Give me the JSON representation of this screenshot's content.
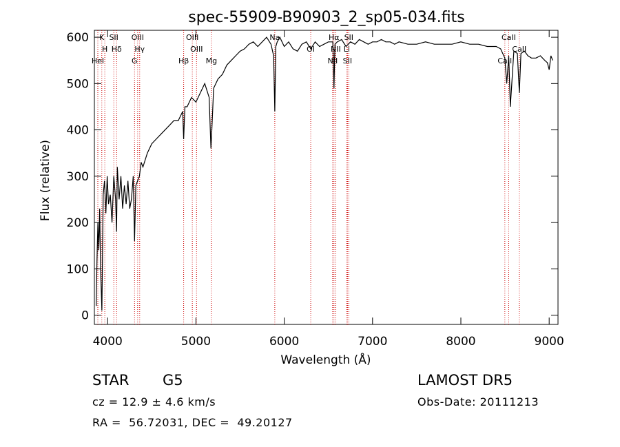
{
  "chart_data": {
    "type": "line",
    "title": "spec-55909-B90903_2_sp05-034.fits",
    "xlabel": "Wavelength (Å)",
    "ylabel": "Flux (relative)",
    "xlim": [
      3850,
      9100
    ],
    "ylim": [
      -20,
      615
    ],
    "x_ticks": [
      4000,
      5000,
      6000,
      7000,
      8000,
      9000
    ],
    "y_ticks": [
      0,
      100,
      200,
      300,
      400,
      500,
      600
    ],
    "series": [
      {
        "x": [
          3870,
          3880,
          3890,
          3900,
          3910,
          3920,
          3935,
          3950,
          3965,
          3980,
          3995,
          4010,
          4030,
          4050,
          4070,
          4090,
          4101,
          4110,
          4130,
          4150,
          4170,
          4190,
          4210,
          4230,
          4250,
          4270,
          4290,
          4305,
          4320,
          4340,
          4360,
          4380,
          4400,
          4450,
          4500,
          4550,
          4600,
          4650,
          4700,
          4750,
          4800,
          4850,
          4861,
          4875,
          4900,
          4950,
          5000,
          5050,
          5100,
          5150,
          5170,
          5180,
          5200,
          5250,
          5300,
          5350,
          5400,
          5450,
          5500,
          5550,
          5600,
          5650,
          5700,
          5750,
          5800,
          5850,
          5880,
          5893,
          5905,
          5920,
          5950,
          6000,
          6050,
          6100,
          6150,
          6200,
          6250,
          6300,
          6350,
          6400,
          6450,
          6500,
          6550,
          6563,
          6575,
          6600,
          6650,
          6700,
          6750,
          6800,
          6850,
          6900,
          6950,
          7000,
          7050,
          7100,
          7150,
          7200,
          7250,
          7300,
          7400,
          7500,
          7600,
          7700,
          7800,
          7900,
          8000,
          8100,
          8200,
          8300,
          8400,
          8450,
          8498,
          8520,
          8542,
          8560,
          8600,
          8640,
          8662,
          8680,
          8720,
          8760,
          8800,
          8850,
          8900,
          8950,
          8980,
          9000,
          9020,
          9040
        ],
        "y": [
          20,
          120,
          200,
          140,
          230,
          100,
          10,
          260,
          290,
          220,
          300,
          240,
          260,
          200,
          300,
          250,
          180,
          320,
          250,
          300,
          230,
          280,
          240,
          290,
          230,
          250,
          300,
          160,
          280,
          290,
          300,
          330,
          320,
          350,
          370,
          380,
          390,
          400,
          410,
          420,
          420,
          440,
          380,
          450,
          450,
          470,
          460,
          480,
          500,
          470,
          360,
          400,
          490,
          510,
          520,
          540,
          550,
          560,
          570,
          575,
          585,
          590,
          580,
          590,
          600,
          585,
          560,
          440,
          580,
          590,
          600,
          580,
          590,
          575,
          570,
          585,
          590,
          575,
          590,
          580,
          585,
          590,
          590,
          490,
          585,
          590,
          595,
          580,
          590,
          585,
          595,
          590,
          585,
          590,
          590,
          595,
          590,
          590,
          585,
          590,
          585,
          585,
          590,
          585,
          585,
          585,
          590,
          585,
          585,
          580,
          580,
          575,
          555,
          500,
          560,
          450,
          570,
          565,
          480,
          565,
          570,
          560,
          555,
          555,
          560,
          550,
          545,
          530,
          560,
          550
        ]
      }
    ],
    "lines": [
      {
        "label": "K",
        "x": 3934
      },
      {
        "label": "H",
        "x": 3968
      },
      {
        "label": "HeI",
        "x": 3889
      },
      {
        "label": "SII",
        "x": 4070
      },
      {
        "label": "Hδ",
        "x": 4102
      },
      {
        "label": "G",
        "x": 4305
      },
      {
        "label": "OIII",
        "x": 4340
      },
      {
        "label": "Hγ",
        "x": 4363
      },
      {
        "label": "Hβ",
        "x": 4861
      },
      {
        "label": "OIII",
        "x": 4959
      },
      {
        "label": "OIII",
        "x": 5007
      },
      {
        "label": "Mg",
        "x": 5175
      },
      {
        "label": "Na",
        "x": 5893
      },
      {
        "label": "OI",
        "x": 6300
      },
      {
        "label": "NII",
        "x": 6548
      },
      {
        "label": "Hα",
        "x": 6563
      },
      {
        "label": "NII",
        "x": 6583
      },
      {
        "label": "SII",
        "x": 6716
      },
      {
        "label": "SII",
        "x": 6731
      },
      {
        "label": "Li",
        "x": 6708
      },
      {
        "label": "CaII",
        "x": 8498
      },
      {
        "label": "CaII",
        "x": 8542
      },
      {
        "label": "CaII",
        "x": 8662
      }
    ],
    "grid": false,
    "colors": {
      "line": "#000000",
      "marker_lines": "#cc0000"
    }
  },
  "info": {
    "class": "STAR",
    "subclass": "G5",
    "survey": "LAMOST DR5",
    "cz": "cz = 12.9 ± 4.6 km/s",
    "obs_date": "Obs-Date: 20111213",
    "radec": "RA =  56.72031, DEC =  49.20127"
  }
}
